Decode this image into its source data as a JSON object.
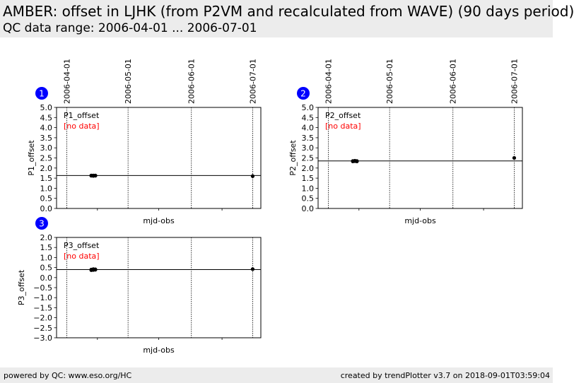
{
  "header": {
    "title": "AMBER: offset in LJHK (from P2VM and recalculated from WAVE) (90 days period)",
    "subtitle": "QC data range: 2006-04-01 ... 2006-07-01"
  },
  "footer": {
    "left": "powered by QC: www.eso.org/HC",
    "right": "created by trendPlotter v3.7 on 2018-09-01T03:59:04"
  },
  "chart_data": [
    {
      "type": "scatter",
      "badge": "1",
      "series_label": "P1_offset",
      "status": "[no data]",
      "status_color": "#ff0000",
      "xlabel": "mjd-obs",
      "ylabel": "P1_offset",
      "xlim": [
        "2006-03-27",
        "2006-07-05"
      ],
      "ylim": [
        0.0,
        5.0
      ],
      "yticks": [
        "0.0",
        "0.5",
        "1.0",
        "1.5",
        "2.0",
        "2.5",
        "3.0",
        "3.5",
        "4.0",
        "4.5",
        "5.0"
      ],
      "date_ticks": [
        "2006-04-01",
        "2006-05-01",
        "2006-06-01",
        "2006-07-01"
      ],
      "reference_line": 1.63,
      "points": [
        {
          "x": "2006-04-13",
          "y": 1.63
        },
        {
          "x": "2006-04-13",
          "y": 1.62
        },
        {
          "x": "2006-04-14",
          "y": 1.63
        },
        {
          "x": "2006-04-14",
          "y": 1.61
        },
        {
          "x": "2006-04-15",
          "y": 1.62
        },
        {
          "x": "2006-04-15",
          "y": 1.63
        },
        {
          "x": "2006-07-01",
          "y": 1.6
        }
      ]
    },
    {
      "type": "scatter",
      "badge": "2",
      "series_label": "P2_offset",
      "status": "[no data]",
      "status_color": "#ff0000",
      "xlabel": "mjd-obs",
      "ylabel": "P2_offset",
      "xlim": [
        "2006-03-27",
        "2006-07-05"
      ],
      "ylim": [
        0.0,
        5.0
      ],
      "yticks": [
        "0.0",
        "0.5",
        "1.0",
        "1.5",
        "2.0",
        "2.5",
        "3.0",
        "3.5",
        "4.0",
        "4.5",
        "5.0"
      ],
      "date_ticks": [
        "2006-04-01",
        "2006-05-01",
        "2006-06-01",
        "2006-07-01"
      ],
      "reference_line": 2.35,
      "points": [
        {
          "x": "2006-04-13",
          "y": 2.35
        },
        {
          "x": "2006-04-13",
          "y": 2.33
        },
        {
          "x": "2006-04-14",
          "y": 2.36
        },
        {
          "x": "2006-04-14",
          "y": 2.34
        },
        {
          "x": "2006-04-15",
          "y": 2.35
        },
        {
          "x": "2006-04-15",
          "y": 2.33
        },
        {
          "x": "2006-07-01",
          "y": 2.5
        }
      ]
    },
    {
      "type": "scatter",
      "badge": "3",
      "series_label": "P3_offset",
      "status": "[no data]",
      "status_color": "#ff0000",
      "xlabel": "mjd-obs",
      "ylabel": "P3_offset",
      "xlim": [
        "2006-03-27",
        "2006-07-05"
      ],
      "ylim": [
        -3.0,
        2.0
      ],
      "yticks": [
        "−3.0",
        "−2.5",
        "−2.0",
        "−1.5",
        "−1.0",
        "−0.5",
        "0.0",
        "0.5",
        "1.0",
        "1.5",
        "2.0"
      ],
      "date_ticks": [],
      "reference_line": 0.4,
      "points": [
        {
          "x": "2006-04-13",
          "y": 0.4
        },
        {
          "x": "2006-04-13",
          "y": 0.37
        },
        {
          "x": "2006-04-14",
          "y": 0.42
        },
        {
          "x": "2006-04-14",
          "y": 0.38
        },
        {
          "x": "2006-04-15",
          "y": 0.41
        },
        {
          "x": "2006-04-15",
          "y": 0.39
        },
        {
          "x": "2006-07-01",
          "y": 0.42
        }
      ]
    }
  ],
  "colors": {
    "badge": "#0000ff",
    "status": "#ff0000",
    "header_bg": "#ececec"
  }
}
